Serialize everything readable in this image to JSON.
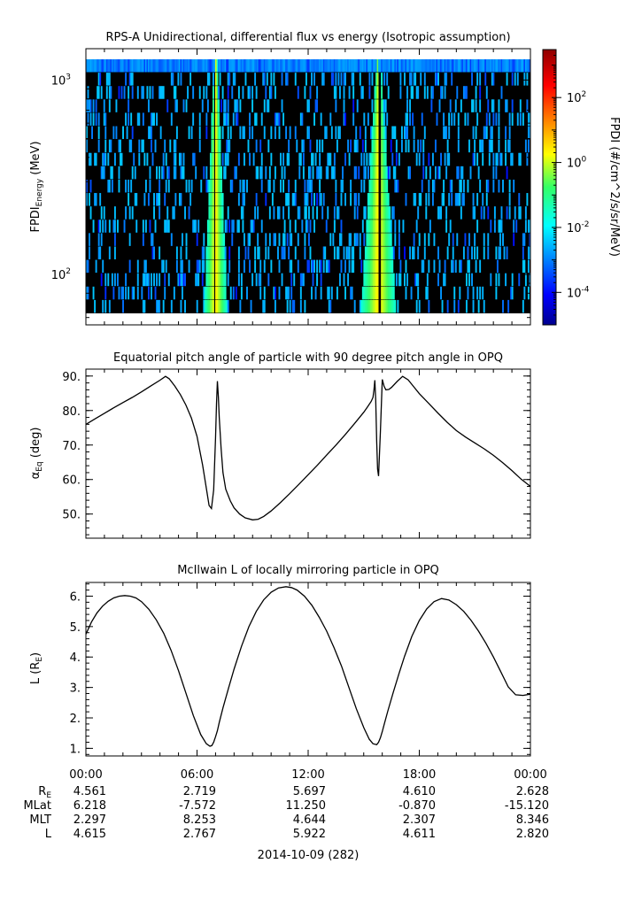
{
  "chart_data": [
    {
      "type": "heatmap",
      "title": "RPS-A Unidirectional, differential flux vs energy (Isotropic assumption)",
      "ylabel_main": "FPDI",
      "ylabel_sub": "Energy",
      "ylabel_unit": " (MeV)",
      "y_scale": "log",
      "ylim": [
        55,
        1450
      ],
      "y_ticks": [
        {
          "value": 100,
          "base": "10",
          "exp": "2"
        },
        {
          "value": 1000,
          "base": "10",
          "exp": "3"
        }
      ],
      "xlim_hours": [
        0,
        24
      ],
      "energy_channels": 19,
      "time_bins": 330,
      "cbar_label": "FPDI (#/cm^2/s/sr/MeV)",
      "cbar_scale": "log",
      "cbar_range": [
        1e-05,
        3000
      ],
      "cbar_ticks": [
        {
          "value": 0.0001,
          "exp": "-4"
        },
        {
          "value": 0.01,
          "exp": "-2"
        },
        {
          "value": 1,
          "exp": "0"
        },
        {
          "value": 100,
          "exp": "2"
        }
      ],
      "fill_color": "#000000"
    },
    {
      "type": "line",
      "title": "Equatorial pitch angle of particle with 90 degree pitch angle in OPQ",
      "ylabel_main": "α",
      "ylabel_sub": "Eq",
      "ylabel_unit": " (deg)",
      "ylim": [
        43,
        92
      ],
      "y_ticks": [
        {
          "value": 50,
          "label": "50."
        },
        {
          "value": 60,
          "label": "60."
        },
        {
          "value": 70,
          "label": "70."
        },
        {
          "value": 80,
          "label": "80."
        },
        {
          "value": 90,
          "label": "90."
        }
      ],
      "y_minor_step": 2,
      "xlim_hours": [
        0,
        24
      ],
      "series": [
        {
          "x": [
            0,
            0.5,
            1,
            1.5,
            2,
            2.5,
            3,
            3.5,
            4,
            4.3,
            4.5,
            4.8,
            5.1,
            5.4,
            5.7,
            6.0,
            6.3,
            6.5,
            6.65,
            6.78,
            6.9,
            7.0,
            7.05,
            7.1,
            7.15,
            7.2,
            7.3,
            7.4,
            7.55,
            7.8,
            8.0,
            8.3,
            8.6,
            9.0,
            9.3,
            9.6,
            10.0,
            10.5,
            11.0,
            11.5,
            12.0,
            12.5,
            13.0,
            13.5,
            14.0,
            14.5,
            15.0,
            15.2,
            15.4,
            15.5,
            15.55,
            15.6,
            15.65,
            15.7,
            15.75,
            15.8,
            15.9,
            16.0,
            16.1,
            16.2,
            16.35,
            16.5,
            16.8,
            17.1,
            17.4,
            17.7,
            18.0,
            18.5,
            19.0,
            19.5,
            20.0,
            20.5,
            21.0,
            21.5,
            22.0,
            22.5,
            23.0,
            23.5,
            24.0
          ],
          "y": [
            76.0,
            77.6,
            79.2,
            80.8,
            82.3,
            83.8,
            85.4,
            87.1,
            88.8,
            89.9,
            89.2,
            87.1,
            84.6,
            81.6,
            77.8,
            72.5,
            64.2,
            57.5,
            52.5,
            51.6,
            57.0,
            72.0,
            82.0,
            88.5,
            84.0,
            78.0,
            69.0,
            62.0,
            57.2,
            53.8,
            51.8,
            50.0,
            48.9,
            48.3,
            48.5,
            49.3,
            50.9,
            53.3,
            55.9,
            58.6,
            61.4,
            64.2,
            67.1,
            70.0,
            73.0,
            76.2,
            79.5,
            81.0,
            82.6,
            83.8,
            86.0,
            88.8,
            83.0,
            71.0,
            63.0,
            61.0,
            74.0,
            89.0,
            87.0,
            86.0,
            86.1,
            86.7,
            88.4,
            89.9,
            88.9,
            86.9,
            84.9,
            82.1,
            79.3,
            76.6,
            74.2,
            72.3,
            70.6,
            68.9,
            67.0,
            64.9,
            62.6,
            60.1,
            58.0
          ]
        }
      ]
    },
    {
      "type": "line",
      "title": "McIlwain L of locally mirroring particle in OPQ",
      "ylabel_main": "L (R",
      "ylabel_sub": "E",
      "ylabel_unit": ")",
      "ylim": [
        0.75,
        6.45
      ],
      "y_ticks": [
        {
          "value": 1,
          "label": "1."
        },
        {
          "value": 2,
          "label": "2."
        },
        {
          "value": 3,
          "label": "3."
        },
        {
          "value": 4,
          "label": "4."
        },
        {
          "value": 5,
          "label": "5."
        },
        {
          "value": 6,
          "label": "6."
        }
      ],
      "y_minor_step": 0.2,
      "xlim_hours": [
        0,
        24
      ],
      "series": [
        {
          "x": [
            0,
            0.3,
            0.6,
            0.9,
            1.2,
            1.5,
            1.8,
            2.1,
            2.4,
            2.7,
            3.0,
            3.4,
            3.8,
            4.2,
            4.6,
            5.0,
            5.4,
            5.8,
            6.2,
            6.5,
            6.7,
            6.8,
            6.9,
            7.0,
            7.1,
            7.2,
            7.4,
            7.7,
            8.0,
            8.4,
            8.8,
            9.2,
            9.6,
            10.0,
            10.4,
            10.8,
            11.1,
            11.4,
            11.8,
            12.2,
            12.6,
            13.0,
            13.4,
            13.8,
            14.2,
            14.6,
            15.0,
            15.3,
            15.5,
            15.7,
            15.8,
            15.9,
            16.0,
            16.1,
            16.3,
            16.6,
            16.9,
            17.2,
            17.6,
            18.0,
            18.4,
            18.8,
            19.2,
            19.6,
            20.0,
            20.4,
            20.8,
            21.2,
            21.6,
            22.0,
            22.4,
            22.8,
            23.2,
            23.6,
            24.0
          ],
          "y": [
            4.75,
            5.15,
            5.45,
            5.67,
            5.83,
            5.94,
            6.0,
            6.02,
            6.0,
            5.94,
            5.82,
            5.57,
            5.22,
            4.78,
            4.22,
            3.55,
            2.82,
            2.08,
            1.45,
            1.15,
            1.07,
            1.09,
            1.2,
            1.38,
            1.58,
            1.85,
            2.33,
            2.98,
            3.6,
            4.35,
            5.0,
            5.5,
            5.88,
            6.13,
            6.27,
            6.31,
            6.28,
            6.2,
            6.0,
            5.7,
            5.3,
            4.85,
            4.3,
            3.7,
            3.0,
            2.3,
            1.68,
            1.3,
            1.15,
            1.12,
            1.2,
            1.35,
            1.55,
            1.78,
            2.22,
            2.85,
            3.45,
            4.02,
            4.68,
            5.2,
            5.58,
            5.82,
            5.92,
            5.87,
            5.72,
            5.5,
            5.2,
            4.85,
            4.45,
            4.0,
            3.52,
            3.02,
            2.76,
            2.74,
            2.78
          ]
        }
      ]
    }
  ],
  "time_axis": {
    "tick_labels": [
      "00:00",
      "06:00",
      "12:00",
      "18:00",
      "00:00"
    ],
    "minor_tick_hours": 1,
    "date_label": "2014-10-09 (282)"
  },
  "ephemeris": {
    "rows": [
      {
        "label_main": "R",
        "label_sub": "E",
        "values": [
          "4.561",
          "2.719",
          "5.697",
          "4.610",
          "2.628"
        ]
      },
      {
        "label_main": "MLat",
        "label_sub": "",
        "values": [
          "6.218",
          "-7.572",
          "11.250",
          "-0.870",
          "-15.120"
        ]
      },
      {
        "label_main": "MLT",
        "label_sub": "",
        "values": [
          "2.297",
          "8.253",
          "4.644",
          "2.307",
          "8.346"
        ]
      },
      {
        "label_main": "L",
        "label_sub": "",
        "values": [
          "4.615",
          "2.767",
          "5.922",
          "4.611",
          "2.820"
        ]
      }
    ]
  }
}
